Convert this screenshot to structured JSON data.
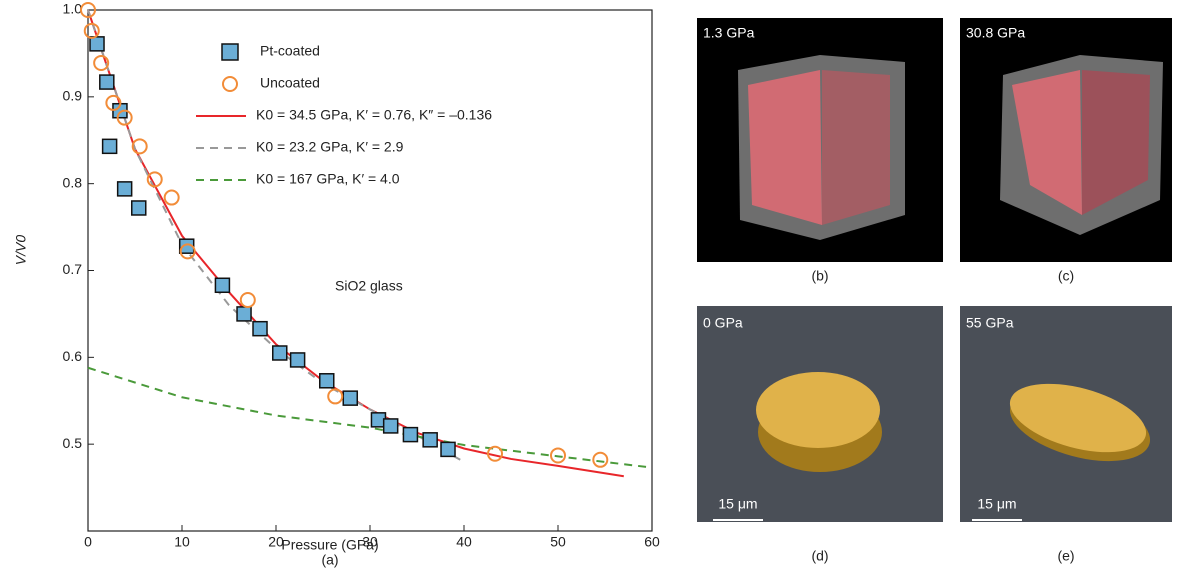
{
  "chart_data": {
    "type": "scatter",
    "panel_label": "(a)",
    "x_label": "Pressure (GPa)",
    "y_label": "V/V0",
    "annotation": "SiO2 glass",
    "xlim": [
      0,
      60
    ],
    "xticks": [
      0,
      10,
      20,
      30,
      40,
      50,
      60
    ],
    "ylim": [
      0.4,
      1.0
    ],
    "yticks": [
      0.5,
      0.6,
      0.7,
      0.8,
      0.9,
      {
        "value": 1,
        "label": "1.0"
      }
    ],
    "series": [
      {
        "name": "Pt-coated",
        "marker": "square",
        "color": "#6baed6",
        "x": [
          0.96,
          2.0,
          3.4,
          2.3,
          3.9,
          5.4,
          10.5,
          14.3,
          16.6,
          18.3,
          20.4,
          22.3,
          25.4,
          27.9,
          30.9,
          32.2,
          34.3,
          36.4,
          38.3
        ],
        "values": [
          0.961,
          0.917,
          0.884,
          0.843,
          0.794,
          0.772,
          0.728,
          0.683,
          0.65,
          0.633,
          0.605,
          0.597,
          0.573,
          0.553,
          0.528,
          0.521,
          0.511,
          0.505,
          0.494
        ]
      },
      {
        "name": "Uncoated",
        "marker": "circle",
        "color": "#f28c38",
        "x": [
          0,
          0.4,
          1.4,
          2.7,
          3.9,
          5.5,
          7.1,
          8.9,
          10.6,
          17.0,
          26.3,
          43.3,
          50.0,
          54.5
        ],
        "values": [
          1.0,
          0.976,
          0.939,
          0.893,
          0.876,
          0.843,
          0.805,
          0.784,
          0.722,
          0.666,
          0.555,
          0.489,
          0.487,
          0.482
        ]
      },
      {
        "name": "K0 = 34.5 GPa, K′ = 0.76, K″ = –0.136",
        "marker": "line",
        "color": "#e8262a",
        "dash": "none",
        "x": [
          0,
          5,
          10,
          15,
          20,
          25,
          30,
          35,
          40,
          45,
          50,
          57
        ],
        "values": [
          1.0,
          0.84,
          0.74,
          0.675,
          0.615,
          0.573,
          0.54,
          0.513,
          0.495,
          0.483,
          0.475,
          0.463
        ]
      },
      {
        "name": "K0 = 23.2 GPa, K′ = 2.9",
        "marker": "line",
        "color": "#999999",
        "dash": "8 6",
        "x": [
          0,
          5,
          10,
          15,
          20,
          25,
          30,
          35,
          39.6
        ],
        "values": [
          1.0,
          0.84,
          0.73,
          0.66,
          0.61,
          0.57,
          0.54,
          0.51,
          0.482
        ]
      },
      {
        "name": "K0 = 167 GPa, K′ = 4.0",
        "marker": "line",
        "color": "#4a9a3a",
        "dash": "8 6",
        "x": [
          0,
          10,
          20,
          30,
          40,
          50,
          60
        ],
        "values": [
          0.588,
          0.554,
          0.533,
          0.519,
          0.499,
          0.486,
          0.473
        ]
      }
    ]
  },
  "images": [
    {
      "label": "1.3 GPa",
      "caption": "(b)"
    },
    {
      "label": "30.8 GPa",
      "caption": "(c)"
    },
    {
      "label": "0 GPa",
      "caption": "(d)",
      "scale_bar": "15 μm"
    },
    {
      "label": "55 GPa",
      "caption": "(e)",
      "scale_bar": "15 μm"
    }
  ]
}
